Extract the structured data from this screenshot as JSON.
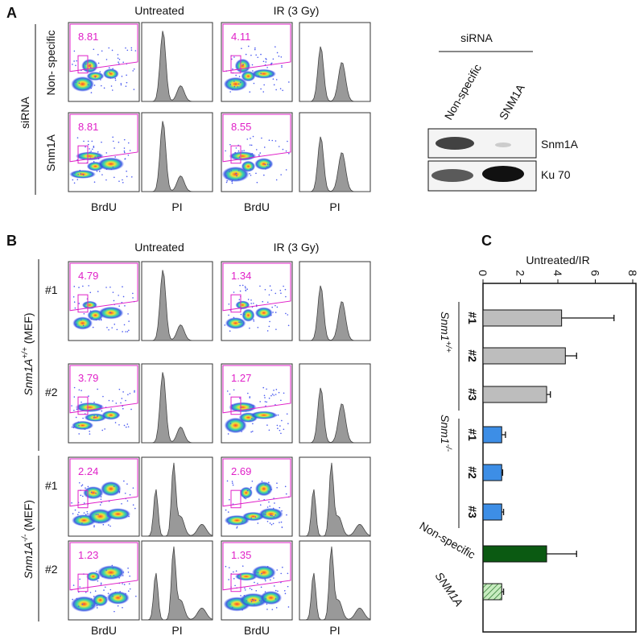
{
  "panel_a": {
    "label": "A",
    "conditions": [
      "Untreated",
      "IR (3 Gy)"
    ],
    "row_group": "siRNA",
    "rows": [
      "Non- specific",
      "Snm1A"
    ],
    "axis_labels": [
      "BrdU",
      "PI",
      "BrdU",
      "PI"
    ],
    "percentages": [
      [
        8.81,
        4.11
      ],
      [
        8.81,
        8.55
      ]
    ],
    "blot": {
      "header": "siRNA",
      "lanes": [
        "Non-specific",
        "SNM1A"
      ],
      "bands": [
        "Snm1A",
        "Ku 70"
      ]
    }
  },
  "panel_b": {
    "label": "B",
    "conditions": [
      "Untreated",
      "IR (3 Gy)"
    ],
    "groups": [
      {
        "name": "Snm1A",
        "superscript": "+/+",
        "suffix": " (MEF)",
        "rows": [
          "#1",
          "#2"
        ],
        "percentages": [
          [
            4.79,
            1.34
          ],
          [
            3.79,
            1.27
          ]
        ]
      },
      {
        "name": "Snm1A",
        "superscript": "-/-",
        "suffix": " (MEF)",
        "rows": [
          "#1",
          "#2"
        ],
        "percentages": [
          [
            2.24,
            2.69
          ],
          [
            1.23,
            1.35
          ]
        ]
      }
    ],
    "axis_labels": [
      "BrdU",
      "PI",
      "BrdU",
      "PI"
    ]
  },
  "panel_c": {
    "label": "C"
  },
  "chart_data": {
    "type": "hbar",
    "xlabel": "Untreated/IR",
    "xlim": [
      0,
      8
    ],
    "xticks": [
      0,
      2,
      4,
      6,
      8
    ],
    "categories": [
      "#1",
      "#2",
      "#3",
      "#1",
      "#2",
      "#3",
      "Non-specific",
      "SNM1A"
    ],
    "groups": [
      {
        "name": "Snm1",
        "superscript": "+/+",
        "start": 0,
        "end": 2
      },
      {
        "name": "Snm1",
        "superscript": "-/-",
        "start": 3,
        "end": 5
      }
    ],
    "values": [
      4.2,
      4.4,
      3.4,
      1.0,
      1.0,
      1.0,
      3.4,
      1.0
    ],
    "errors": [
      2.8,
      0.6,
      0.2,
      0.2,
      0.05,
      0.1,
      1.6,
      0.1
    ],
    "colors": [
      "#bdbdbd",
      "#bdbdbd",
      "#bdbdbd",
      "#3d8ee6",
      "#3d8ee6",
      "#3d8ee6",
      "#0b5a12",
      "#c8ecc0"
    ],
    "hatched": [
      false,
      false,
      false,
      false,
      false,
      false,
      false,
      true
    ]
  }
}
